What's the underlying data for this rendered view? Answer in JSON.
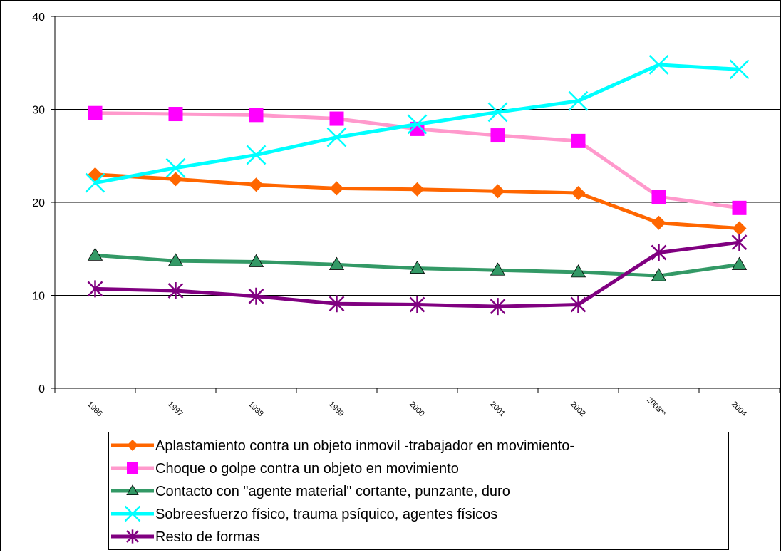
{
  "chart_data": {
    "type": "line",
    "categories": [
      "1996",
      "1997",
      "1998",
      "1999",
      "2000",
      "2001",
      "2002",
      "2003**",
      "2004"
    ],
    "ylim": [
      0,
      40
    ],
    "yticks": [
      0,
      10,
      20,
      30,
      40
    ],
    "grid": true,
    "legend": "bottom",
    "series": [
      {
        "name": "Aplastamiento contra un objeto inmovil -trabajador en movimiento-",
        "color": "#ff6600",
        "marker_color": "#ff6600",
        "marker": "diamond",
        "values": [
          23.0,
          22.5,
          21.9,
          21.5,
          21.4,
          21.2,
          21.0,
          17.8,
          17.2
        ]
      },
      {
        "name": "Choque o golpe contra un objeto en movimiento",
        "color": "#ff99cc",
        "marker_color": "#ff00ff",
        "marker": "square",
        "values": [
          29.6,
          29.5,
          29.4,
          29.0,
          27.9,
          27.2,
          26.6,
          20.6,
          19.4
        ]
      },
      {
        "name": "Contacto con \"agente material\" cortante, punzante, duro",
        "color": "#339966",
        "marker_color": "#339966",
        "marker": "triangle",
        "values": [
          14.3,
          13.7,
          13.6,
          13.3,
          12.9,
          12.7,
          12.5,
          12.1,
          13.3
        ]
      },
      {
        "name": "Sobreesfuerzo físico, trauma psíquico, agentes físicos",
        "color": "#00ffff",
        "marker_color": "#00ffff",
        "marker": "x",
        "values": [
          22.1,
          23.7,
          25.1,
          27.0,
          28.4,
          29.7,
          30.9,
          34.8,
          34.3
        ]
      },
      {
        "name": "Resto de formas",
        "color": "#800080",
        "marker_color": "#800080",
        "marker": "star",
        "values": [
          10.7,
          10.5,
          9.9,
          9.1,
          9.0,
          8.8,
          9.0,
          14.6,
          15.7
        ]
      }
    ]
  }
}
